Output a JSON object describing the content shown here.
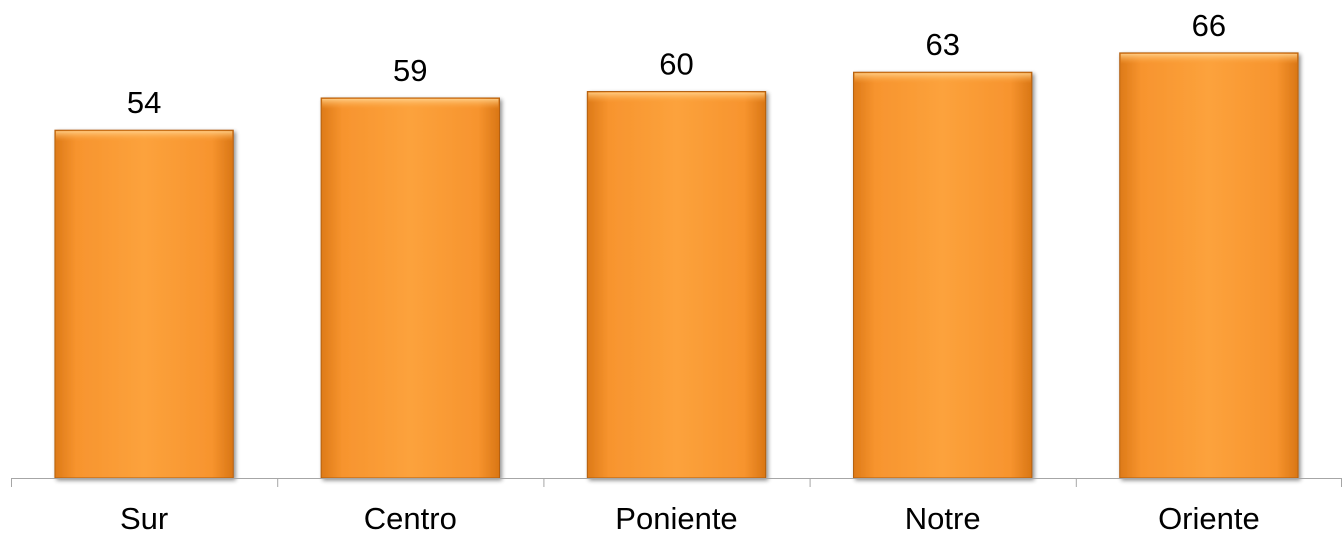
{
  "chart_data": {
    "type": "bar",
    "categories": [
      "Sur",
      "Centro",
      "Poniente",
      "Notre",
      "Oriente"
    ],
    "values": [
      54,
      59,
      60,
      63,
      66
    ],
    "title": "",
    "xlabel": "",
    "ylabel": "",
    "ylim": [
      0,
      68
    ],
    "grid": false,
    "legend": "none",
    "data_labels": true,
    "colors": {
      "bar_fill_light": "#FCA844",
      "bar_fill": "#F7942E",
      "bar_fill_dark": "#E07D1A",
      "bar_edge": "#B35F10",
      "axis": "#A6A6A6"
    }
  }
}
